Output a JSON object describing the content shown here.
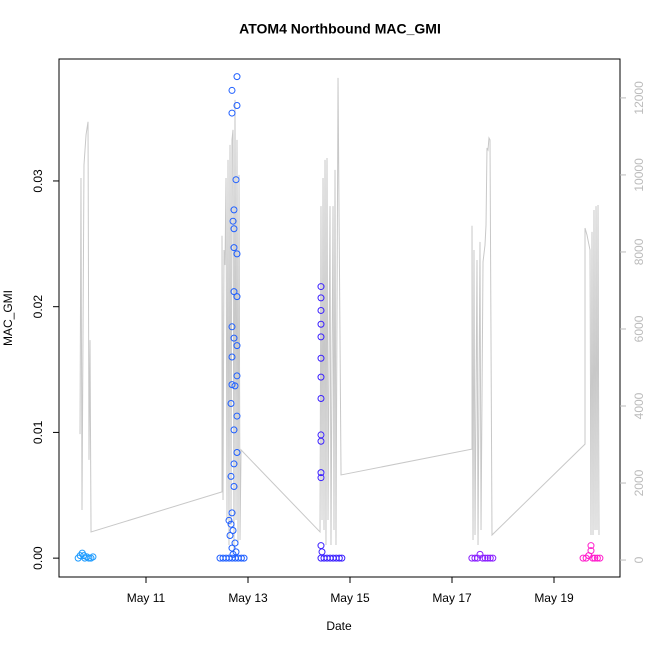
{
  "chart_data": {
    "type": "scatter",
    "title": "ATOM4 Northbound MAC_GMI",
    "x_label": "Date",
    "y_label": "MAC_GMI",
    "xlim": [
      9.294,
      20.294
    ],
    "ylim": [
      -0.0015,
      0.0397
    ],
    "y2lim": [
      -440,
      13010
    ],
    "xticks": [
      {
        "value": 11,
        "label": "May 11"
      },
      {
        "value": 13,
        "label": "May 13"
      },
      {
        "value": 15,
        "label": "May 15"
      },
      {
        "value": 17,
        "label": "May 17"
      },
      {
        "value": 19,
        "label": "May 19"
      }
    ],
    "yticks": [
      {
        "value": 0,
        "label": "0.00"
      },
      0.01,
      0.02,
      0.03
    ],
    "y2ticks": [
      0,
      2000,
      4000,
      6000,
      8000,
      10000,
      12000
    ],
    "series": [
      {
        "color": "#1e9bff",
        "x": [
          9.67,
          9.71,
          9.75,
          9.78,
          9.8,
          9.84,
          9.88,
          9.92,
          9.96
        ],
        "values": [
          0,
          0.0002,
          0.0004,
          0.0002,
          0,
          0.0001,
          0,
          0,
          0.0001
        ]
      },
      {
        "color": "#1f5fff",
        "x": [
          12.784,
          12.686,
          12.784,
          12.686,
          12.765,
          12.725,
          12.706,
          12.725,
          12.725,
          12.784,
          12.725,
          12.784,
          12.686,
          12.725,
          12.784,
          12.686,
          12.784,
          12.686,
          12.745,
          12.667,
          12.784,
          12.725,
          12.784,
          12.725,
          12.667,
          12.725,
          12.686,
          12.627,
          12.667,
          12.706,
          12.647,
          12.745,
          12.686,
          12.765,
          12.706,
          12.451,
          12.51,
          12.57,
          12.63,
          12.69,
          12.75,
          12.81,
          12.87,
          12.922
        ],
        "values": [
          0.0383,
          0.0372,
          0.036,
          0.0354,
          0.0301,
          0.0277,
          0.0268,
          0.0262,
          0.0247,
          0.0242,
          0.0212,
          0.0208,
          0.0184,
          0.0175,
          0.0169,
          0.016,
          0.0145,
          0.0138,
          0.0137,
          0.0123,
          0.0113,
          0.0102,
          0.0084,
          0.0075,
          0.0065,
          0.0057,
          0.0036,
          0.003,
          0.0027,
          0.0022,
          0.0018,
          0.0012,
          0.0008,
          0.0005,
          0.0003,
          0,
          0,
          0,
          0,
          0,
          0,
          0,
          0,
          0
        ]
      },
      {
        "color": "#3a1fff",
        "x": [
          14.431,
          14.431,
          14.431,
          14.431,
          14.431,
          14.431,
          14.431,
          14.431,
          14.431,
          14.431,
          14.431,
          14.431,
          14.431,
          14.451,
          14.431,
          14.49,
          14.55,
          14.61,
          14.67,
          14.73,
          14.79,
          14.84
        ],
        "values": [
          0.0216,
          0.0207,
          0.0197,
          0.0186,
          0.0176,
          0.0159,
          0.0144,
          0.0127,
          0.0098,
          0.0093,
          0.0068,
          0.0064,
          0.001,
          0.0005,
          0,
          0,
          0,
          0,
          0,
          0,
          0,
          0
        ]
      },
      {
        "color": "#8a1fff",
        "x": [
          17.39,
          17.45,
          17.5,
          17.549,
          17.6,
          17.65,
          17.7,
          17.75,
          17.8
        ],
        "values": [
          0,
          0,
          0,
          0.0003,
          0,
          0,
          0,
          0,
          0
        ]
      },
      {
        "color": "#ff1fcc",
        "x": [
          19.57,
          19.63,
          19.68,
          19.725,
          19.725,
          19.76,
          19.8,
          19.85,
          19.9
        ],
        "values": [
          0,
          0,
          0.0002,
          0.001,
          0.0006,
          0,
          0,
          0,
          0
        ]
      },
      {
        "type": "line",
        "axis": "y2",
        "color": "#c8c8c8",
        "x": [
          9.706,
          9.725,
          9.745,
          9.784,
          9.824,
          9.863,
          9.882,
          9.902,
          9.922,
          12.49,
          12.49,
          12.51,
          12.529,
          12.549,
          12.569,
          12.588,
          12.608,
          12.627,
          12.647,
          12.667,
          12.686,
          12.706,
          12.725,
          12.745,
          12.765,
          12.784,
          12.804,
          12.824,
          12.843,
          12.863,
          14.412,
          14.431,
          14.451,
          14.471,
          14.49,
          14.51,
          14.529,
          14.549,
          14.569,
          14.608,
          14.627,
          14.667,
          14.686,
          14.706,
          14.725,
          14.765,
          14.824,
          17.392,
          17.392,
          17.412,
          17.431,
          17.451,
          17.49,
          17.51,
          17.549,
          17.569,
          17.608,
          17.647,
          17.667,
          17.686,
          17.706,
          17.725,
          17.745,
          17.784,
          19.608,
          19.608,
          19.647,
          19.706,
          19.725,
          19.745,
          19.765,
          19.784,
          19.804,
          19.824,
          19.843,
          19.863,
          19.882
        ],
        "values": [
          3270,
          9920,
          1300,
          10260,
          11040,
          11380,
          2600,
          5710,
          730,
          1770,
          8420,
          1560,
          8050,
          7660,
          9920,
          1040,
          10390,
          390,
          10780,
          910,
          10910,
          11170,
          260,
          11950,
          1040,
          10910,
          390,
          10000,
          520,
          2860,
          730,
          9190,
          1040,
          9920,
          780,
          10390,
          390,
          10440,
          1040,
          9190,
          390,
          9190,
          780,
          10130,
          390,
          12520,
          2210,
          2880,
          8680,
          520,
          8050,
          650,
          7790,
          390,
          8260,
          780,
          7740,
          8180,
          8700,
          10700,
          10650,
          10960,
          10910,
          650,
          3010,
          8620,
          8440,
          8050,
          650,
          8520,
          650,
          9090,
          780,
          9190,
          780,
          9220,
          650
        ]
      }
    ]
  }
}
